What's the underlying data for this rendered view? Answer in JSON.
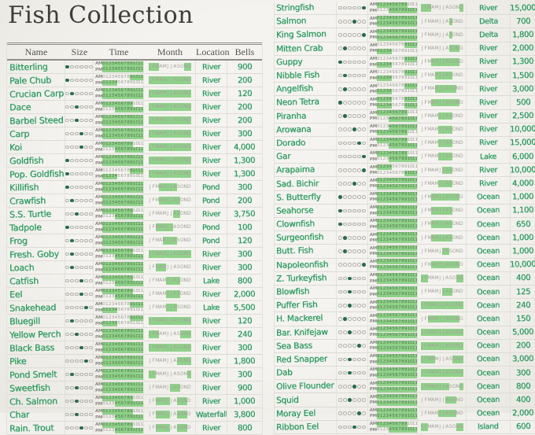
{
  "title": "Fish Collection",
  "columns": [
    "Name",
    "Size",
    "Time",
    "Month",
    "Location",
    "Bells"
  ],
  "time_row_labels": [
    "AM",
    "PM"
  ],
  "hour_labels": [
    "0",
    "1",
    "2",
    "3",
    "4",
    "5",
    "6",
    "7",
    "8",
    "9",
    "10",
    "11"
  ],
  "month_labels": [
    "J",
    "F",
    "M",
    "A",
    "M",
    "J",
    "J",
    "A",
    "S",
    "O",
    "N",
    "D"
  ],
  "size_dots_total": 6,
  "colors": {
    "paper": "#f1f0ec",
    "title_ink": "#3e3d3a",
    "marker_ink": "#2f9b62",
    "highlighter": "#8fd189",
    "filled_dot": "#2a6b51",
    "grid_line": "#dddcd6",
    "header_line": "#8f8e89"
  },
  "row_fields": [
    "name",
    "size_filled_index",
    "am_hours_active",
    "pm_hours_active",
    "months_active",
    "location",
    "bells"
  ],
  "left_page_rows": [
    [
      "Bitterling",
      0,
      "111111111111",
      "111111111111",
      "111000000011",
      "River",
      "900"
    ],
    [
      "Pale Chub",
      0,
      "000000000111",
      "111110000000",
      "111111111111",
      "River",
      "200"
    ],
    [
      "Crucian Carp",
      1,
      "111111111111",
      "111111111111",
      "111111111111",
      "River",
      "120"
    ],
    [
      "Dace",
      2,
      "111111111100",
      "000011111111",
      "111111111111",
      "River",
      "200"
    ],
    [
      "Barbel Steed",
      2,
      "111111111111",
      "111111111111",
      "111111111111",
      "River",
      "200"
    ],
    [
      "Carp",
      3,
      "111111111111",
      "111111111111",
      "111111111111",
      "River",
      "300"
    ],
    [
      "Koi",
      3,
      "111111111100",
      "000011111111",
      "111111111111",
      "River",
      "4,000"
    ],
    [
      "Goldfish",
      0,
      "111111111111",
      "111111111111",
      "111111111111",
      "River",
      "1,300"
    ],
    [
      "Pop. Goldfish",
      0,
      "000000000111",
      "111110000000",
      "111111111111",
      "River",
      "1,300"
    ],
    [
      "Killifish",
      0,
      "111111111111",
      "111111111111",
      "000111110000",
      "Pond",
      "300"
    ],
    [
      "Crawfish",
      1,
      "111111111111",
      "111111111111",
      "000111111000",
      "Pond",
      "200"
    ],
    [
      "S.S. Turtle",
      2,
      "111111111100",
      "000011111111",
      "000000011000",
      "River",
      "3,750"
    ],
    [
      "Tadpole",
      0,
      "111111111111",
      "111111111111",
      "001111100000",
      "Pond",
      "100"
    ],
    [
      "Frog",
      1,
      "111111111111",
      "111111111111",
      "000011110000",
      "Pond",
      "120"
    ],
    [
      "Fresh. Goby",
      1,
      "111111111100",
      "000011111111",
      "111111111111",
      "River",
      "300"
    ],
    [
      "Loach",
      1,
      "111111111111",
      "111111111111",
      "001110000000",
      "River",
      "300"
    ],
    [
      "Catfish",
      3,
      "111111111100",
      "000011111111",
      "000001111000",
      "Lake",
      "800"
    ],
    [
      "Eel",
      3,
      "111111111100",
      "000011111111",
      "000001111000",
      "River",
      "2,000"
    ],
    [
      "Snakehead",
      4,
      "000000000111",
      "111110000000",
      "000001110000",
      "Lake",
      "5,500"
    ],
    [
      "Bluegill",
      1,
      "000000000111",
      "111110000000",
      "111111111111",
      "River",
      "120"
    ],
    [
      "Yellow Perch",
      2,
      "111111111111",
      "111111111111",
      "111000000111",
      "River",
      "240"
    ],
    [
      "Black Bass",
      3,
      "111111111111",
      "111111111111",
      "111111111111",
      "River",
      "300"
    ],
    [
      "Pike",
      4,
      "111111111111",
      "111111111111",
      "000000001111",
      "River",
      "1,800"
    ],
    [
      "Pond Smelt",
      1,
      "111111111111",
      "111111111111",
      "110000000001",
      "River",
      "300"
    ],
    [
      "Sweetfish",
      2,
      "111111111111",
      "111111111111",
      "000000111000",
      "River",
      "900"
    ],
    [
      "Ch. Salmon",
      2,
      "111111111100",
      "000011111111",
      "001111001110",
      "River",
      "1,000"
    ],
    [
      "Char",
      2,
      "111111111100",
      "000011111111",
      "001111001110",
      "Waterfall",
      "3,800"
    ],
    [
      "Rain. Trout",
      3,
      "111111111100",
      "000011111111",
      "001111001110",
      "River",
      "800"
    ]
  ],
  "right_page_rows": [
    [
      "Stringfish",
      5,
      "111111111100",
      "000011111111",
      "111000000001",
      "River",
      "15,000"
    ],
    [
      "Salmon",
      3,
      "111111111111",
      "111111111111",
      "000000001000",
      "Delta",
      "700"
    ],
    [
      "King Salmon",
      5,
      "111111111111",
      "111111111111",
      "000000001000",
      "Delta",
      "1,800"
    ],
    [
      "Mitten Crab",
      1,
      "000000000111",
      "111110000000",
      "000000001110",
      "River",
      "2,000"
    ],
    [
      "Guppy",
      0,
      "000000000111",
      "111110000000",
      "000111111110",
      "River",
      "1,300"
    ],
    [
      "Nibble Fish",
      1,
      "000000000111",
      "111110000000",
      "000011111000",
      "River",
      "1,500"
    ],
    [
      "Angelfish",
      1,
      "000000000111",
      "111110000000",
      "000011111100",
      "River",
      "3,000"
    ],
    [
      "Neon Tetra",
      0,
      "111110000111",
      "111110000111",
      "000111111110",
      "River",
      "500"
    ],
    [
      "Piranha",
      1,
      "111111111100",
      "000011111111",
      "000001111000",
      "River",
      "2,500"
    ],
    [
      "Arowana",
      3,
      "000011111111",
      "111111111100",
      "000001111000",
      "River",
      "10,000"
    ],
    [
      "Dorado",
      4,
      "111111111100",
      "000011111111",
      "000001111000",
      "River",
      "15,000"
    ],
    [
      "Gar",
      5,
      "111111111100",
      "000011111111",
      "000001111000",
      "Lake",
      "6,000"
    ],
    [
      "Arapaima",
      5,
      "111110000000",
      "000000000111",
      "000000111000",
      "River",
      "10,000"
    ],
    [
      "Sad. Bichir",
      3,
      "111111111111",
      "111111111111",
      "000001111000",
      "River",
      "4,000"
    ],
    [
      "S. Butterfly",
      0,
      "111111111111",
      "111111111111",
      "000111111110",
      "Ocean",
      "1,000"
    ],
    [
      "Seahorse",
      0,
      "111111111111",
      "111111111111",
      "000111111000",
      "Ocean",
      "1,100"
    ],
    [
      "Clownfish",
      0,
      "111111111111",
      "111111111111",
      "000111111000",
      "Ocean",
      "650"
    ],
    [
      "Surgeonfish",
      1,
      "111111111111",
      "111111111111",
      "000111111000",
      "Ocean",
      "1,000"
    ],
    [
      "Butt. Fish",
      1,
      "111111111111",
      "111111111111",
      "000000110000",
      "Ocean",
      "1,000"
    ],
    [
      "Napoleonfish",
      5,
      "111111111111",
      "111111111111",
      "000111111110",
      "Ocean",
      "10,000"
    ],
    [
      "Z. Turkeyfish",
      2,
      "111111111111",
      "111111111111",
      "110000000011",
      "Ocean",
      "400"
    ],
    [
      "Blowfish",
      2,
      "111111111111",
      "111111111111",
      "000000111000",
      "Ocean",
      "125"
    ],
    [
      "Puffer Fish",
      2,
      "111111111111",
      "111111111111",
      "111111111111",
      "Ocean",
      "240"
    ],
    [
      "H. Mackerel",
      1,
      "111111111111",
      "111111111111",
      "001111111110",
      "Ocean",
      "150"
    ],
    [
      "Bar. Knifejaw",
      2,
      "111111111111",
      "111111111111",
      "111111111111",
      "Ocean",
      "5,000"
    ],
    [
      "Sea Bass",
      4,
      "111111111111",
      "111111111111",
      "111111111111",
      "Ocean",
      "200"
    ],
    [
      "Red Snapper",
      2,
      "111111111111",
      "111111111111",
      "111100000111",
      "Ocean",
      "3,000"
    ],
    [
      "Dab",
      2,
      "111111111111",
      "111111111111",
      "111111111111",
      "Ocean",
      "300"
    ],
    [
      "Olive Flounder",
      3,
      "111111111111",
      "111111111111",
      "111111110001",
      "Ocean",
      "800"
    ],
    [
      "Squid",
      2,
      "111111111111",
      "111111111111",
      "000000011100",
      "Ocean",
      "400"
    ],
    [
      "Moray Eel",
      4,
      "111111111111",
      "111111111111",
      "000001111100",
      "Ocean",
      "2,000"
    ],
    [
      "Ribbon Eel",
      3,
      "111111111100",
      "000011111111",
      "110000000011",
      "Island",
      "600"
    ]
  ]
}
